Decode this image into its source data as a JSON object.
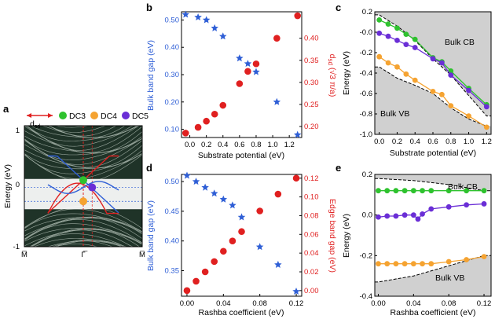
{
  "colors": {
    "blue": "#2f5fd6",
    "red": "#e02020",
    "green": "#2ec22e",
    "orange": "#f5a331",
    "purple": "#6a2ed6",
    "bulk_fill": "#d0d0d0",
    "band_lines": "#243a2e"
  },
  "chart_data": [
    {
      "panel": "a",
      "type": "line",
      "title": "",
      "xlabel": "",
      "ylabel": "Energy (eV)",
      "x_ticks": [
        "M̅",
        "Γ̅",
        "M̅"
      ],
      "y_ticks": [
        "1",
        "0",
        "-1"
      ],
      "ylim": [
        -1,
        1
      ],
      "legend": [
        {
          "name": "DC3",
          "color": "green"
        },
        {
          "name": "DC4",
          "color": "orange"
        },
        {
          "name": "DC5",
          "color": "purple"
        }
      ],
      "dsd_label": "d",
      "dsd_subscript": "sd",
      "dirac_points": [
        {
          "name": "DC3",
          "x": 0.0,
          "y": 0.1
        },
        {
          "name": "DC4",
          "x": 0.0,
          "y": -0.25
        },
        {
          "name": "DC5",
          "x": 0.15,
          "y": -0.02
        }
      ]
    },
    {
      "panel": "b",
      "type": "scatter",
      "xlabel": "Substrate potential (eV)",
      "ylabel_left": "Bulk band gap (eV)",
      "ylabel_right_prefix": "d",
      "ylabel_right_sub": "sd",
      "ylabel_right_suffix": " (√3 π/a)",
      "xlim": [
        -0.1,
        1.35
      ],
      "ylim_left": [
        0.07,
        0.53
      ],
      "ylim_right": [
        0.175,
        0.46
      ],
      "x_ticks": [
        "0.0",
        "0.2",
        "0.4",
        "0.6",
        "0.8",
        "1.0",
        "1.2"
      ],
      "y_left_ticks": [
        "0.50",
        "0.40",
        "0.30",
        "0.20",
        "0.10"
      ],
      "y_right_ticks": [
        "0.40",
        "0.35",
        "0.30",
        "0.25",
        "0.20"
      ],
      "series": [
        {
          "name": "Bulk band gap",
          "axis": "left",
          "marker": "star",
          "x": [
            -0.05,
            0.1,
            0.2,
            0.3,
            0.4,
            0.6,
            0.7,
            0.8,
            1.05,
            1.3
          ],
          "y": [
            0.52,
            0.51,
            0.5,
            0.47,
            0.44,
            0.36,
            0.34,
            0.31,
            0.2,
            0.08
          ]
        },
        {
          "name": "d_sd",
          "axis": "right",
          "marker": "circle",
          "x": [
            -0.05,
            0.1,
            0.2,
            0.3,
            0.4,
            0.6,
            0.7,
            0.8,
            1.05,
            1.3
          ],
          "y": [
            0.185,
            0.198,
            0.212,
            0.228,
            0.248,
            0.297,
            0.325,
            0.342,
            0.4,
            0.451
          ]
        }
      ]
    },
    {
      "panel": "c",
      "type": "line",
      "xlabel": "Substrate potential (eV)",
      "ylabel": "Energy (eV)",
      "xlim": [
        -0.05,
        1.25
      ],
      "ylim": [
        -1.0,
        0.2
      ],
      "x_ticks": [
        "0.0",
        "0.2",
        "0.4",
        "0.6",
        "0.8",
        "1.0",
        "1.2"
      ],
      "y_ticks": [
        "0.2",
        "-0.0",
        "-0.2",
        "-0.4",
        "-0.6",
        "-0.8",
        "-1.0"
      ],
      "annotations": [
        "Bulk CB",
        "Bulk VB"
      ],
      "bulk_cb_edge": {
        "x": [
          0.0,
          0.2,
          0.4,
          0.6,
          0.8,
          1.0,
          1.2
        ],
        "y": [
          0.17,
          0.06,
          -0.08,
          -0.26,
          -0.42,
          -0.62,
          -0.82
        ]
      },
      "bulk_vb_edge": {
        "x": [
          0.0,
          0.2,
          0.4,
          0.6,
          0.8,
          1.0,
          1.2
        ],
        "y": [
          -0.34,
          -0.45,
          -0.52,
          -0.6,
          -0.74,
          -0.85,
          -0.92
        ]
      },
      "series": [
        {
          "name": "DC3",
          "color": "green",
          "x": [
            0.0,
            0.1,
            0.2,
            0.3,
            0.4,
            0.6,
            0.7,
            0.8,
            1.0,
            1.2
          ],
          "y": [
            0.12,
            0.08,
            0.04,
            -0.02,
            -0.07,
            -0.25,
            -0.29,
            -0.38,
            -0.55,
            -0.71
          ]
        },
        {
          "name": "DC5",
          "color": "purple",
          "x": [
            0.0,
            0.1,
            0.2,
            0.3,
            0.4,
            0.6,
            0.7,
            0.8,
            1.0,
            1.2
          ],
          "y": [
            -0.01,
            -0.04,
            -0.08,
            -0.12,
            -0.15,
            -0.26,
            -0.3,
            -0.42,
            -0.57,
            -0.73
          ]
        },
        {
          "name": "DC4",
          "color": "orange",
          "x": [
            0.0,
            0.1,
            0.2,
            0.3,
            0.4,
            0.6,
            0.7,
            0.8,
            1.0,
            1.2
          ],
          "y": [
            -0.24,
            -0.3,
            -0.34,
            -0.41,
            -0.47,
            -0.58,
            -0.61,
            -0.72,
            -0.82,
            -0.93
          ]
        }
      ]
    },
    {
      "panel": "d",
      "type": "scatter",
      "xlabel": "Rashba coefficient (eV)",
      "ylabel_left": "Bulk band gap (eV)",
      "ylabel_right": "Edge band gap (eV)",
      "xlim": [
        -0.006,
        0.126
      ],
      "ylim_left": [
        0.307,
        0.512
      ],
      "ylim_right": [
        -0.006,
        0.124
      ],
      "x_ticks": [
        "0.00",
        "0.04",
        "0.08",
        "0.12"
      ],
      "y_left_ticks": [
        "0.50",
        "0.45",
        "0.40",
        "0.35"
      ],
      "y_right_ticks": [
        "0.12",
        "0.10",
        "0.08",
        "0.06",
        "0.04",
        "0.02",
        "0.00"
      ],
      "series": [
        {
          "name": "Bulk band gap",
          "axis": "left",
          "marker": "star",
          "x": [
            0.0,
            0.01,
            0.02,
            0.03,
            0.04,
            0.05,
            0.06,
            0.08,
            0.1,
            0.12
          ],
          "y": [
            0.51,
            0.5,
            0.49,
            0.48,
            0.47,
            0.46,
            0.44,
            0.39,
            0.36,
            0.315
          ]
        },
        {
          "name": "Edge band gap",
          "axis": "right",
          "marker": "circle",
          "x": [
            0.0,
            0.01,
            0.02,
            0.03,
            0.04,
            0.05,
            0.06,
            0.08,
            0.1,
            0.12
          ],
          "y": [
            0.0,
            0.01,
            0.02,
            0.031,
            0.042,
            0.053,
            0.063,
            0.085,
            0.103,
            0.12
          ]
        }
      ]
    },
    {
      "panel": "e",
      "type": "line",
      "xlabel": "Rashba coefficient (eV)",
      "ylabel": "Energy (eV)",
      "xlim": [
        -0.004,
        0.128
      ],
      "ylim": [
        -0.4,
        0.2
      ],
      "x_ticks": [
        "0.00",
        "0.04",
        "0.08",
        "0.12"
      ],
      "y_ticks": [
        "0.2",
        "0.0",
        "-0.2",
        "-0.4"
      ],
      "annotations": [
        "Bulk CB",
        "Bulk VB"
      ],
      "bulk_cb_edge": {
        "x": [
          0.0,
          0.04,
          0.08,
          0.12
        ],
        "y": [
          0.18,
          0.17,
          0.15,
          0.12
        ]
      },
      "bulk_vb_edge": {
        "x": [
          0.0,
          0.04,
          0.08,
          0.12
        ],
        "y": [
          -0.33,
          -0.3,
          -0.25,
          -0.2
        ]
      },
      "series": [
        {
          "name": "DC3",
          "color": "green",
          "x": [
            0.0,
            0.01,
            0.02,
            0.03,
            0.04,
            0.05,
            0.06,
            0.08,
            0.1,
            0.12
          ],
          "y": [
            0.12,
            0.12,
            0.12,
            0.12,
            0.12,
            0.12,
            0.12,
            0.12,
            0.12,
            0.12
          ]
        },
        {
          "name": "DC5",
          "color": "purple",
          "x": [
            0.0,
            0.01,
            0.02,
            0.03,
            0.04,
            0.045,
            0.05,
            0.06,
            0.08,
            0.1,
            0.12
          ],
          "y": [
            -0.01,
            -0.005,
            -0.005,
            0.0,
            0.0,
            -0.02,
            0.005,
            0.03,
            0.04,
            0.05,
            0.055
          ]
        },
        {
          "name": "DC4",
          "color": "orange",
          "x": [
            0.0,
            0.01,
            0.02,
            0.03,
            0.04,
            0.05,
            0.06,
            0.08,
            0.1,
            0.12
          ],
          "y": [
            -0.24,
            -0.24,
            -0.24,
            -0.24,
            -0.24,
            -0.24,
            -0.24,
            -0.23,
            -0.22,
            -0.205
          ]
        }
      ]
    }
  ],
  "panel_letters": {
    "a": "a",
    "b": "b",
    "c": "c",
    "d": "d",
    "e": "e"
  }
}
